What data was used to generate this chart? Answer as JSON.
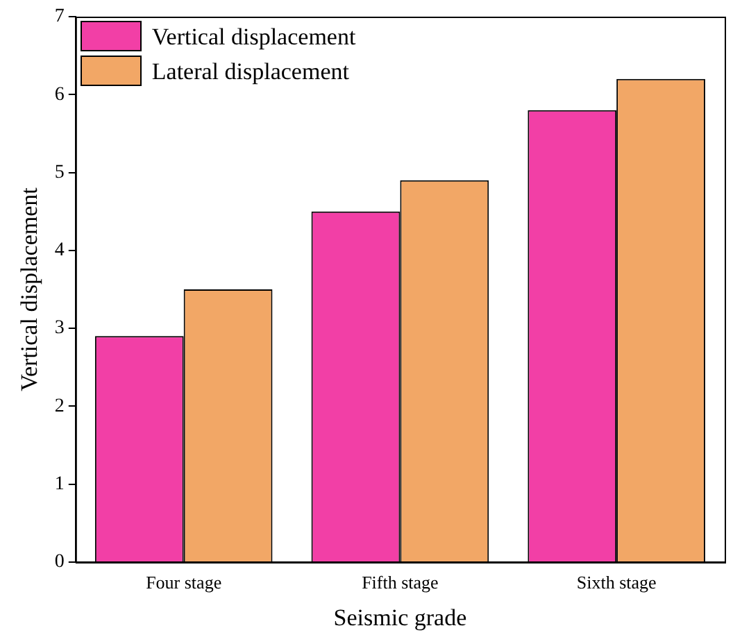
{
  "chart_data": {
    "type": "bar",
    "xlabel": "Seismic grade",
    "ylabel": "Vertical displacement",
    "categories": [
      "Four stage",
      "Fifth stage",
      "Sixth stage"
    ],
    "series": [
      {
        "name": "Vertical displacement",
        "color": "#f23fa6",
        "values": [
          2.9,
          4.5,
          5.8
        ]
      },
      {
        "name": "Lateral displacement",
        "color": "#f2a766",
        "values": [
          3.5,
          4.9,
          6.2
        ]
      }
    ],
    "ylim": [
      0,
      7
    ],
    "yticks": [
      0,
      1,
      2,
      3,
      4,
      5,
      6,
      7
    ],
    "grid": false,
    "legend": "top left"
  }
}
